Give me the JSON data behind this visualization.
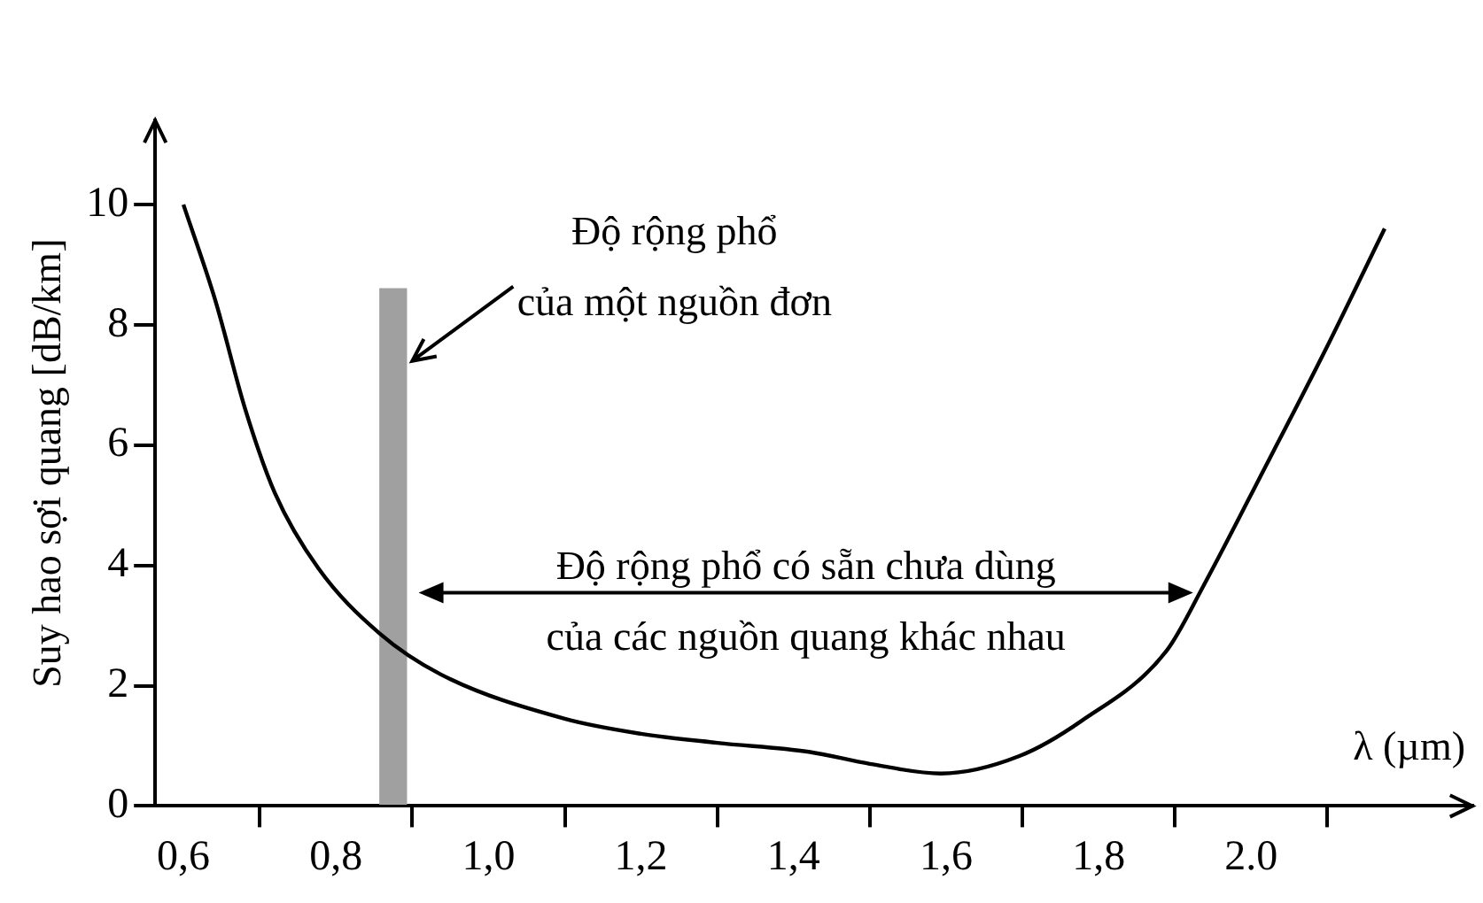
{
  "chart_data": {
    "type": "line",
    "xlabel": "λ (µm)",
    "ylabel": "Suy hao sợi quang [dB/km]",
    "xlim": [
      0.563,
      2.29
    ],
    "ylim": [
      0,
      11.4
    ],
    "xticks": [
      {
        "value": 0.6,
        "label": "0,6"
      },
      {
        "value": 0.8,
        "label": "0,8"
      },
      {
        "value": 1.0,
        "label": "1,0"
      },
      {
        "value": 1.2,
        "label": "1,2"
      },
      {
        "value": 1.4,
        "label": "1,4"
      },
      {
        "value": 1.6,
        "label": "1,6"
      },
      {
        "value": 1.8,
        "label": "1,8"
      },
      {
        "value": 2.0,
        "label": "2.0"
      }
    ],
    "yticks": [
      0,
      2,
      4,
      6,
      8,
      10
    ],
    "series": [
      {
        "color": "#000000",
        "x": [
          0.6,
          0.642,
          0.681,
          0.72,
          0.777,
          0.857,
          0.937,
          1.1,
          1.2,
          1.3,
          1.42,
          1.5,
          1.593,
          1.696,
          1.777,
          1.889,
          1.937,
          2.017,
          2.096,
          2.175
        ],
        "values": [
          10,
          8.4,
          6.6,
          5.2,
          3.95,
          2.87,
          2.19,
          1.45,
          1.2,
          1.05,
          0.9,
          0.7,
          0.54,
          0.83,
          1.41,
          2.58,
          3.65,
          5.6,
          7.55,
          9.6
        ]
      },
      {
        "type": "bar",
        "color": "#a0a0a0",
        "x": [
          0.875
        ],
        "values": [
          8.6
        ]
      }
    ],
    "annotations": [
      {
        "text": "Độ rộng phổ\ncủa một nguồn đơn",
        "x": 0.9,
        "y": 7.4
      },
      "Độ rộng phổ có sẵn chưa dùng\ncủa các nguồn quang khác nhau"
    ],
    "legend": false,
    "grid": false,
    "marker": "none",
    "line_style": "solid"
  }
}
